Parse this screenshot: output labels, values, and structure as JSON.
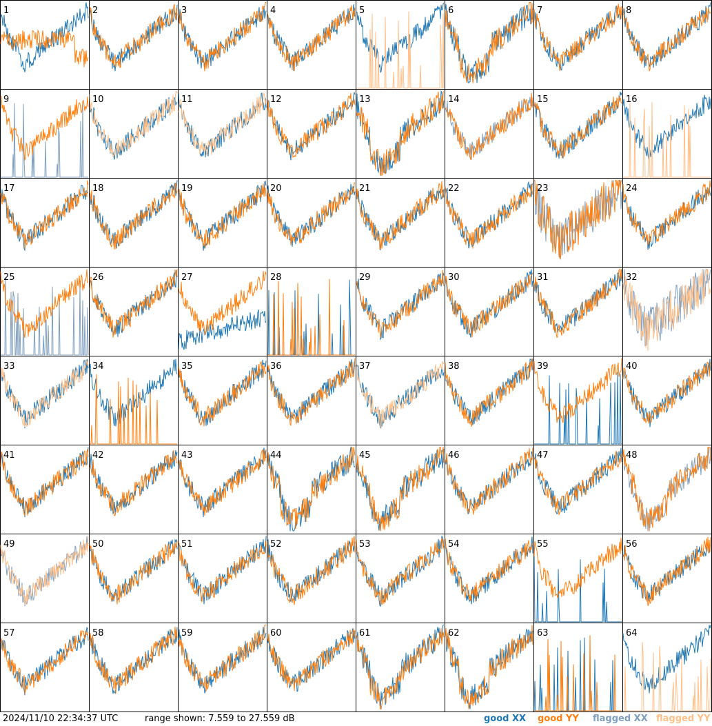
{
  "timestamp": "2024/11/10 22:34:37 UTC",
  "range_text": "range shown: 7.559 to 27.559 dB",
  "legend": [
    {
      "label": "good XX",
      "color": "#1f77b4"
    },
    {
      "label": "good YY",
      "color": "#ff7f0e"
    },
    {
      "label": "flagged XX",
      "color": "#7f9fbf"
    },
    {
      "label": "flagged YY",
      "color": "#ffbf87"
    }
  ],
  "chart_data": {
    "type": "line",
    "ylim": [
      7.559,
      27.559
    ],
    "units": "dB",
    "grid": false,
    "layout": "8x8 small multiples",
    "panels": [
      {
        "label": "1",
        "x": "good",
        "y": "good",
        "profile": "high-flat"
      },
      {
        "label": "2",
        "x": "good",
        "y": "good",
        "profile": "normal"
      },
      {
        "label": "3",
        "x": "good",
        "y": "good",
        "profile": "normal"
      },
      {
        "label": "4",
        "x": "good",
        "y": "good",
        "profile": "normal"
      },
      {
        "label": "5",
        "x": "good",
        "y": "flagged",
        "profile": "y-spikes"
      },
      {
        "label": "6",
        "x": "good",
        "y": "good",
        "profile": "deep"
      },
      {
        "label": "7",
        "x": "good",
        "y": "good",
        "profile": "normal"
      },
      {
        "label": "8",
        "x": "good",
        "y": "good",
        "profile": "normal"
      },
      {
        "label": "9",
        "x": "flagged",
        "y": "good",
        "profile": "x-spikes"
      },
      {
        "label": "10",
        "x": "good",
        "y": "flagged",
        "profile": "normal"
      },
      {
        "label": "11",
        "x": "good",
        "y": "flagged",
        "profile": "normal"
      },
      {
        "label": "12",
        "x": "good",
        "y": "good",
        "profile": "normal"
      },
      {
        "label": "13",
        "x": "good",
        "y": "good",
        "profile": "deep"
      },
      {
        "label": "14",
        "x": "flagged",
        "y": "good",
        "profile": "normal"
      },
      {
        "label": "15",
        "x": "good",
        "y": "good",
        "profile": "normal"
      },
      {
        "label": "16",
        "x": "good",
        "y": "flagged",
        "profile": "y-spikes"
      },
      {
        "label": "17",
        "x": "good",
        "y": "good",
        "profile": "normal"
      },
      {
        "label": "18",
        "x": "good",
        "y": "good",
        "profile": "normal"
      },
      {
        "label": "19",
        "x": "good",
        "y": "good",
        "profile": "normal"
      },
      {
        "label": "20",
        "x": "good",
        "y": "good",
        "profile": "normal"
      },
      {
        "label": "21",
        "x": "good",
        "y": "good",
        "profile": "normal"
      },
      {
        "label": "22",
        "x": "good",
        "y": "good",
        "profile": "normal"
      },
      {
        "label": "23",
        "x": "flagged",
        "y": "good",
        "profile": "noisy"
      },
      {
        "label": "24",
        "x": "good",
        "y": "good",
        "profile": "normal"
      },
      {
        "label": "25",
        "x": "flagged",
        "y": "good",
        "profile": "x-spikes"
      },
      {
        "label": "26",
        "x": "good",
        "y": "good",
        "profile": "normal"
      },
      {
        "label": "27",
        "x": "good",
        "y": "good",
        "profile": "low-x"
      },
      {
        "label": "28",
        "x": "good",
        "y": "good",
        "profile": "both-spikes"
      },
      {
        "label": "29",
        "x": "good",
        "y": "good",
        "profile": "normal"
      },
      {
        "label": "30",
        "x": "good",
        "y": "good",
        "profile": "normal"
      },
      {
        "label": "31",
        "x": "good",
        "y": "good",
        "profile": "normal"
      },
      {
        "label": "32",
        "x": "flagged",
        "y": "flagged",
        "profile": "noisy"
      },
      {
        "label": "33",
        "x": "good",
        "y": "flagged",
        "profile": "normal"
      },
      {
        "label": "34",
        "x": "good",
        "y": "good",
        "profile": "y-low"
      },
      {
        "label": "35",
        "x": "good",
        "y": "good",
        "profile": "normal"
      },
      {
        "label": "36",
        "x": "good",
        "y": "good",
        "profile": "normal"
      },
      {
        "label": "37",
        "x": "good",
        "y": "flagged",
        "profile": "normal"
      },
      {
        "label": "38",
        "x": "good",
        "y": "good",
        "profile": "normal"
      },
      {
        "label": "39",
        "x": "good",
        "y": "good",
        "profile": "x-spikes"
      },
      {
        "label": "40",
        "x": "good",
        "y": "good",
        "profile": "normal"
      },
      {
        "label": "41",
        "x": "good",
        "y": "good",
        "profile": "normal"
      },
      {
        "label": "42",
        "x": "good",
        "y": "good",
        "profile": "normal"
      },
      {
        "label": "43",
        "x": "good",
        "y": "good",
        "profile": "normal"
      },
      {
        "label": "44",
        "x": "good",
        "y": "good",
        "profile": "deep"
      },
      {
        "label": "45",
        "x": "good",
        "y": "good",
        "profile": "deep"
      },
      {
        "label": "46",
        "x": "good",
        "y": "good",
        "profile": "normal"
      },
      {
        "label": "47",
        "x": "good",
        "y": "good",
        "profile": "normal"
      },
      {
        "label": "48",
        "x": "flagged",
        "y": "good",
        "profile": "deep"
      },
      {
        "label": "49",
        "x": "flagged",
        "y": "flagged",
        "profile": "normal"
      },
      {
        "label": "50",
        "x": "good",
        "y": "good",
        "profile": "normal"
      },
      {
        "label": "51",
        "x": "good",
        "y": "good",
        "profile": "normal"
      },
      {
        "label": "52",
        "x": "good",
        "y": "good",
        "profile": "normal"
      },
      {
        "label": "53",
        "x": "good",
        "y": "good",
        "profile": "normal"
      },
      {
        "label": "54",
        "x": "good",
        "y": "good",
        "profile": "normal"
      },
      {
        "label": "55",
        "x": "good",
        "y": "good",
        "profile": "x-spikes"
      },
      {
        "label": "56",
        "x": "good",
        "y": "good",
        "profile": "normal"
      },
      {
        "label": "57",
        "x": "good",
        "y": "good",
        "profile": "normal"
      },
      {
        "label": "58",
        "x": "good",
        "y": "good",
        "profile": "normal"
      },
      {
        "label": "59",
        "x": "good",
        "y": "good",
        "profile": "normal"
      },
      {
        "label": "60",
        "x": "good",
        "y": "good",
        "profile": "normal"
      },
      {
        "label": "61",
        "x": "good",
        "y": "good",
        "profile": "deep"
      },
      {
        "label": "62",
        "x": "good",
        "y": "good",
        "profile": "deep"
      },
      {
        "label": "63",
        "x": "good",
        "y": "good",
        "profile": "both-spikes"
      },
      {
        "label": "64",
        "x": "good",
        "y": "flagged",
        "profile": "y-spikes"
      }
    ]
  }
}
